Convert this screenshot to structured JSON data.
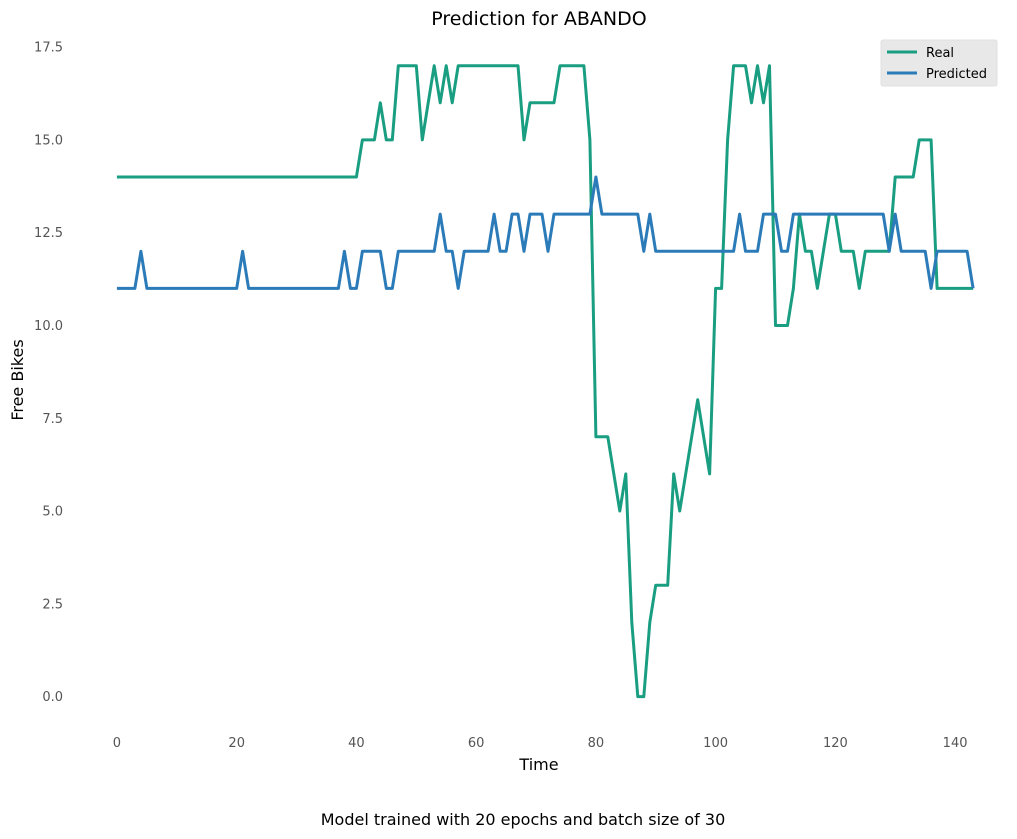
{
  "chart_data": {
    "type": "line",
    "title": "Prediction for ABANDO",
    "xlabel": "Time",
    "ylabel": "Free Bikes",
    "caption": "Model trained with 20 epochs and batch size of 30",
    "xlim": [
      -6,
      147
    ],
    "ylim": [
      -0.9,
      17.8
    ],
    "xticks": [
      0,
      20,
      40,
      60,
      80,
      100,
      120,
      140
    ],
    "xtick_labels": [
      "0",
      "20",
      "40",
      "60",
      "80",
      "100",
      "120",
      "140"
    ],
    "yticks": [
      0,
      2.5,
      5,
      7.5,
      10,
      12.5,
      15,
      17.5
    ],
    "ytick_labels": [
      "0.0",
      "2.5",
      "5.0",
      "7.5",
      "10.0",
      "12.5",
      "15.0",
      "17.5"
    ],
    "grid": false,
    "legend_position": "top-right",
    "series": [
      {
        "name": "Real",
        "color": "#1a9e82",
        "points": [
          [
            0,
            14
          ],
          [
            40,
            14
          ],
          [
            41,
            15
          ],
          [
            43,
            15
          ],
          [
            44,
            16
          ],
          [
            45,
            15
          ],
          [
            46,
            15
          ],
          [
            47,
            17
          ],
          [
            50,
            17
          ],
          [
            51,
            15
          ],
          [
            52,
            16
          ],
          [
            53,
            17
          ],
          [
            54,
            16
          ],
          [
            55,
            17
          ],
          [
            56,
            16
          ],
          [
            57,
            17
          ],
          [
            67,
            17
          ],
          [
            68,
            15
          ],
          [
            69,
            16
          ],
          [
            73,
            16
          ],
          [
            74,
            17
          ],
          [
            78,
            17
          ],
          [
            79,
            15
          ],
          [
            80,
            7
          ],
          [
            82,
            7
          ],
          [
            84,
            5
          ],
          [
            85,
            6
          ],
          [
            86,
            2
          ],
          [
            87,
            0
          ],
          [
            88,
            0
          ],
          [
            89,
            2
          ],
          [
            90,
            3
          ],
          [
            92,
            3
          ],
          [
            93,
            6
          ],
          [
            94,
            5
          ],
          [
            97,
            8
          ],
          [
            99,
            6
          ],
          [
            100,
            11
          ],
          [
            101,
            11
          ],
          [
            102,
            15
          ],
          [
            103,
            17
          ],
          [
            105,
            17
          ],
          [
            106,
            16
          ],
          [
            107,
            17
          ],
          [
            108,
            16
          ],
          [
            109,
            17
          ],
          [
            110,
            10
          ],
          [
            112,
            10
          ],
          [
            113,
            11
          ],
          [
            114,
            13
          ],
          [
            115,
            12
          ],
          [
            116,
            12
          ],
          [
            117,
            11
          ],
          [
            118,
            12
          ],
          [
            119,
            13
          ],
          [
            120,
            13
          ],
          [
            121,
            12
          ],
          [
            123,
            12
          ],
          [
            124,
            11
          ],
          [
            125,
            12
          ],
          [
            129,
            12
          ],
          [
            130,
            14
          ],
          [
            133,
            14
          ],
          [
            134,
            15
          ],
          [
            136,
            15
          ],
          [
            137,
            11
          ],
          [
            143,
            11
          ]
        ]
      },
      {
        "name": "Predicted",
        "color": "#2b7bb9",
        "points": [
          [
            0,
            11
          ],
          [
            3,
            11
          ],
          [
            4,
            12
          ],
          [
            5,
            11
          ],
          [
            20,
            11
          ],
          [
            21,
            12
          ],
          [
            22,
            11
          ],
          [
            37,
            11
          ],
          [
            38,
            12
          ],
          [
            39,
            11
          ],
          [
            40,
            11
          ],
          [
            41,
            12
          ],
          [
            44,
            12
          ],
          [
            45,
            11
          ],
          [
            46,
            11
          ],
          [
            47,
            12
          ],
          [
            53,
            12
          ],
          [
            54,
            13
          ],
          [
            55,
            12
          ],
          [
            56,
            12
          ],
          [
            57,
            11
          ],
          [
            58,
            12
          ],
          [
            62,
            12
          ],
          [
            63,
            13
          ],
          [
            64,
            12
          ],
          [
            65,
            12
          ],
          [
            66,
            13
          ],
          [
            67,
            13
          ],
          [
            68,
            12
          ],
          [
            69,
            13
          ],
          [
            71,
            13
          ],
          [
            72,
            12
          ],
          [
            73,
            13
          ],
          [
            79,
            13
          ],
          [
            80,
            14
          ],
          [
            81,
            13
          ],
          [
            87,
            13
          ],
          [
            88,
            12
          ],
          [
            89,
            13
          ],
          [
            90,
            12
          ],
          [
            103,
            12
          ],
          [
            104,
            13
          ],
          [
            105,
            12
          ],
          [
            107,
            12
          ],
          [
            108,
            13
          ],
          [
            110,
            13
          ],
          [
            111,
            12
          ],
          [
            112,
            12
          ],
          [
            113,
            13
          ],
          [
            128,
            13
          ],
          [
            129,
            12
          ],
          [
            130,
            13
          ],
          [
            131,
            12
          ],
          [
            135,
            12
          ],
          [
            136,
            11
          ],
          [
            137,
            12
          ],
          [
            142,
            12
          ],
          [
            143,
            11
          ]
        ]
      }
    ]
  }
}
